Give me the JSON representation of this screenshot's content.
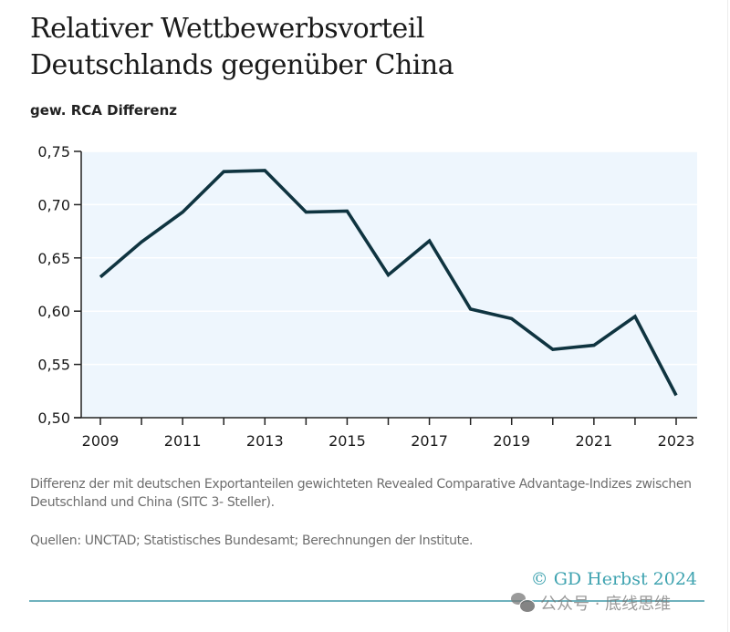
{
  "header": {
    "title_line1": "Relativer Wettbewerbsvorteil",
    "title_line2": "Deutschlands gegenüber China",
    "subtitle": "gew. RCA Differenz"
  },
  "chart_data": {
    "type": "line",
    "title": "Relativer Wettbewerbsvorteil Deutschlands gegenüber China",
    "ylabel": "gew. RCA Differenz",
    "xlabel": "",
    "x": [
      2009,
      2010,
      2011,
      2012,
      2013,
      2014,
      2015,
      2016,
      2017,
      2018,
      2019,
      2020,
      2021,
      2022,
      2023
    ],
    "series": [
      {
        "name": "gew. RCA Differenz",
        "color": "#0f3440",
        "values": [
          0.632,
          0.665,
          0.693,
          0.731,
          0.732,
          0.693,
          0.694,
          0.634,
          0.666,
          0.602,
          0.593,
          0.564,
          0.568,
          0.595,
          0.521
        ]
      }
    ],
    "ylim": [
      0.5,
      0.75
    ],
    "xlim": [
      2008.55,
      2023.5
    ],
    "yticks": [
      0.5,
      0.55,
      0.6,
      0.65,
      0.7,
      0.75
    ],
    "ytick_labels": [
      "0,50",
      "0,55",
      "0,60",
      "0,65",
      "0,70",
      "0,75"
    ],
    "xticks": [
      2009,
      2010,
      2011,
      2012,
      2013,
      2014,
      2015,
      2016,
      2017,
      2018,
      2019,
      2020,
      2021,
      2022,
      2023
    ],
    "xtick_labels": [
      "2009",
      "",
      "2011",
      "",
      "2013",
      "",
      "2015",
      "",
      "2017",
      "",
      "2019",
      "",
      "2021",
      "",
      "2023"
    ],
    "grid": true,
    "legend": "none",
    "plot_background": "#eef6fd"
  },
  "footer": {
    "note": "Differenz der mit deutschen Exportanteilen gewichteten Revealed Comparative Advantage-Indizes zwischen Deutschland und China (SITC 3- Steller).",
    "source": "Quellen: UNCTAD; Statistisches Bundesamt; Berechnungen der Institute.",
    "copyright": "© GD Herbst 2024",
    "accent_color": "#3fa3b0"
  },
  "watermark": {
    "icon": "wechat-icon",
    "text": "公众号 · 底线思维"
  }
}
